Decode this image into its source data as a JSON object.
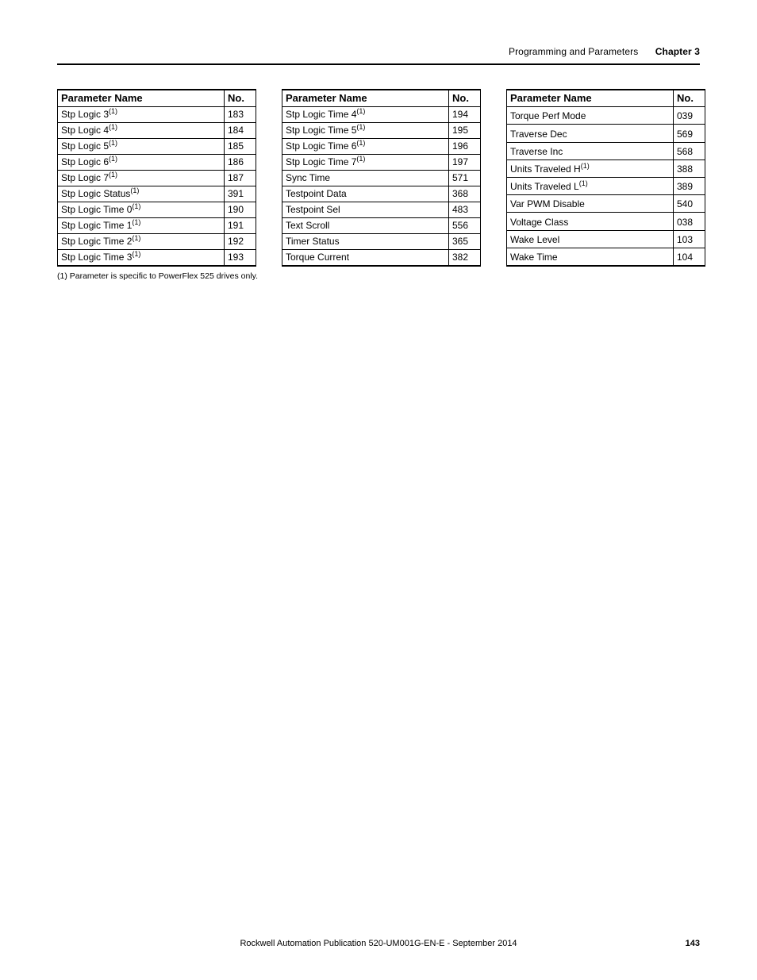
{
  "header": {
    "section": "Programming and Parameters",
    "chapter": "Chapter 3"
  },
  "columns": {
    "name": "Parameter Name",
    "no": "No."
  },
  "tables": [
    {
      "rows": [
        {
          "name": "Stp Logic 3",
          "fn": "(1)",
          "no": "183"
        },
        {
          "name": "Stp Logic 4",
          "fn": "(1)",
          "no": "184"
        },
        {
          "name": "Stp Logic 5",
          "fn": "(1)",
          "no": "185"
        },
        {
          "name": "Stp Logic 6",
          "fn": "(1)",
          "no": "186"
        },
        {
          "name": "Stp Logic 7",
          "fn": "(1)",
          "no": "187"
        },
        {
          "name": "Stp Logic Status",
          "fn": "(1)",
          "no": "391"
        },
        {
          "name": "Stp Logic Time 0",
          "fn": "(1)",
          "no": "190"
        },
        {
          "name": "Stp Logic Time 1",
          "fn": "(1)",
          "no": "191"
        },
        {
          "name": "Stp Logic Time 2",
          "fn": "(1)",
          "no": "192"
        },
        {
          "name": "Stp Logic Time 3",
          "fn": "(1)",
          "no": "193"
        }
      ]
    },
    {
      "rows": [
        {
          "name": "Stp Logic Time 4",
          "fn": "(1)",
          "no": "194"
        },
        {
          "name": "Stp Logic Time 5",
          "fn": "(1)",
          "no": "195"
        },
        {
          "name": "Stp Logic Time 6",
          "fn": "(1)",
          "no": "196"
        },
        {
          "name": "Stp Logic Time 7",
          "fn": "(1)",
          "no": "197"
        },
        {
          "name": "Sync Time",
          "fn": "",
          "no": "571"
        },
        {
          "name": "Testpoint Data",
          "fn": "",
          "no": "368"
        },
        {
          "name": "Testpoint Sel",
          "fn": "",
          "no": "483"
        },
        {
          "name": "Text Scroll",
          "fn": "",
          "no": "556"
        },
        {
          "name": "Timer Status",
          "fn": "",
          "no": "365"
        },
        {
          "name": "Torque Current",
          "fn": "",
          "no": "382"
        }
      ]
    },
    {
      "rows": [
        {
          "name": "Torque Perf Mode",
          "fn": "",
          "no": "039"
        },
        {
          "name": "Traverse Dec",
          "fn": "",
          "no": "569"
        },
        {
          "name": "Traverse Inc",
          "fn": "",
          "no": "568"
        },
        {
          "name": "Units Traveled H",
          "fn": "(1)",
          "no": "388"
        },
        {
          "name": "Units Traveled L",
          "fn": "(1)",
          "no": "389"
        },
        {
          "name": "Var PWM Disable",
          "fn": "",
          "no": "540"
        },
        {
          "name": "Voltage Class",
          "fn": "",
          "no": "038"
        },
        {
          "name": "Wake Level",
          "fn": "",
          "no": "103"
        },
        {
          "name": "Wake Time",
          "fn": "",
          "no": "104"
        }
      ]
    }
  ],
  "footnote": "(1)   Parameter is specific to PowerFlex 525 drives only.",
  "footer": {
    "text": "Rockwell Automation Publication 520-UM001G-EN-E - September 2014",
    "page": "143"
  }
}
